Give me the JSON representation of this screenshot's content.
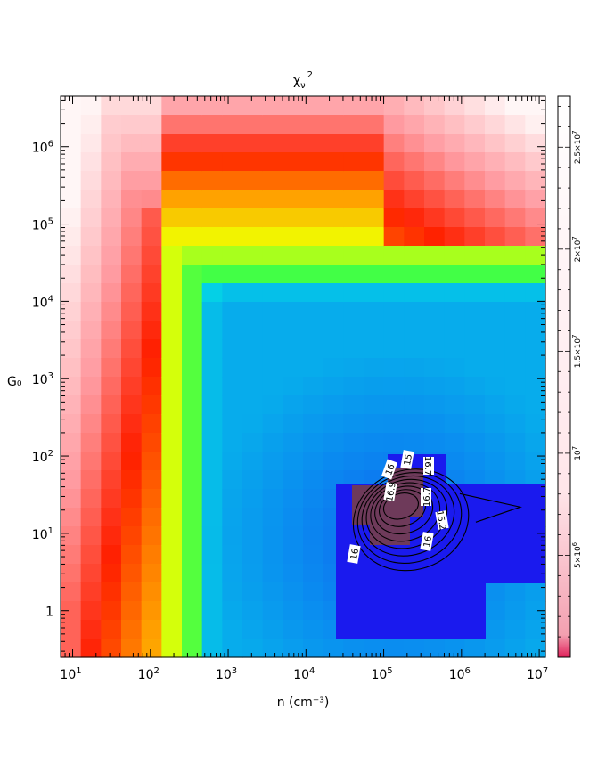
{
  "chart_data": {
    "type": "heatmap",
    "title": "χ_ν²",
    "title_main": "χ",
    "title_sub": "ν",
    "title_sup": "2",
    "xlabel": "n (cm⁻³)",
    "ylabel": "G₀",
    "x_scale": "log",
    "y_scale": "log",
    "xlim": [
      7,
      12000000
    ],
    "ylim": [
      0.25,
      4500000
    ],
    "x_tick_labels": [
      {
        "base": "10",
        "exp": "1",
        "value": 10
      },
      {
        "base": "10",
        "exp": "2",
        "value": 100
      },
      {
        "base": "10",
        "exp": "3",
        "value": 1000
      },
      {
        "base": "10",
        "exp": "4",
        "value": 10000
      },
      {
        "base": "10",
        "exp": "5",
        "value": 100000
      },
      {
        "base": "10",
        "exp": "6",
        "value": 1000000
      },
      {
        "base": "10",
        "exp": "7",
        "value": 10000000
      }
    ],
    "y_tick_labels": [
      {
        "base": "1",
        "exp": "",
        "value": 1
      },
      {
        "base": "10",
        "exp": "1",
        "value": 10
      },
      {
        "base": "10",
        "exp": "2",
        "value": 100
      },
      {
        "base": "10",
        "exp": "3",
        "value": 1000
      },
      {
        "base": "10",
        "exp": "4",
        "value": 10000
      },
      {
        "base": "10",
        "exp": "5",
        "value": 100000
      },
      {
        "base": "10",
        "exp": "6",
        "value": 1000000
      }
    ],
    "colorbar": {
      "range": [
        0,
        27500000
      ],
      "ticks": [
        {
          "value": 5000000,
          "base": "5×10",
          "exp": "6"
        },
        {
          "value": 10000000,
          "base": "10",
          "exp": "7"
        },
        {
          "value": 15000000,
          "base": "1.5×10",
          "exp": "7"
        },
        {
          "value": 20000000,
          "base": "2×10",
          "exp": "7"
        },
        {
          "value": 25000000,
          "base": "2.5×10",
          "exp": "7"
        }
      ],
      "colormap": [
        "#1a1aee",
        "#0a8cf0",
        "#00ffe0",
        "#00ff60",
        "#f0ff00",
        "#ffa000",
        "#ff2000",
        "#ff9aa0",
        "#fff6f6"
      ]
    },
    "grid_note": "log-spaced cells; chi-square values mapped to colorbar",
    "contour_labels": [
      "16",
      "15",
      "16.7",
      "16.7",
      "16.9",
      "15.2",
      "16",
      "16"
    ],
    "minimum_region": {
      "n": 150000,
      "G0": 25
    }
  }
}
